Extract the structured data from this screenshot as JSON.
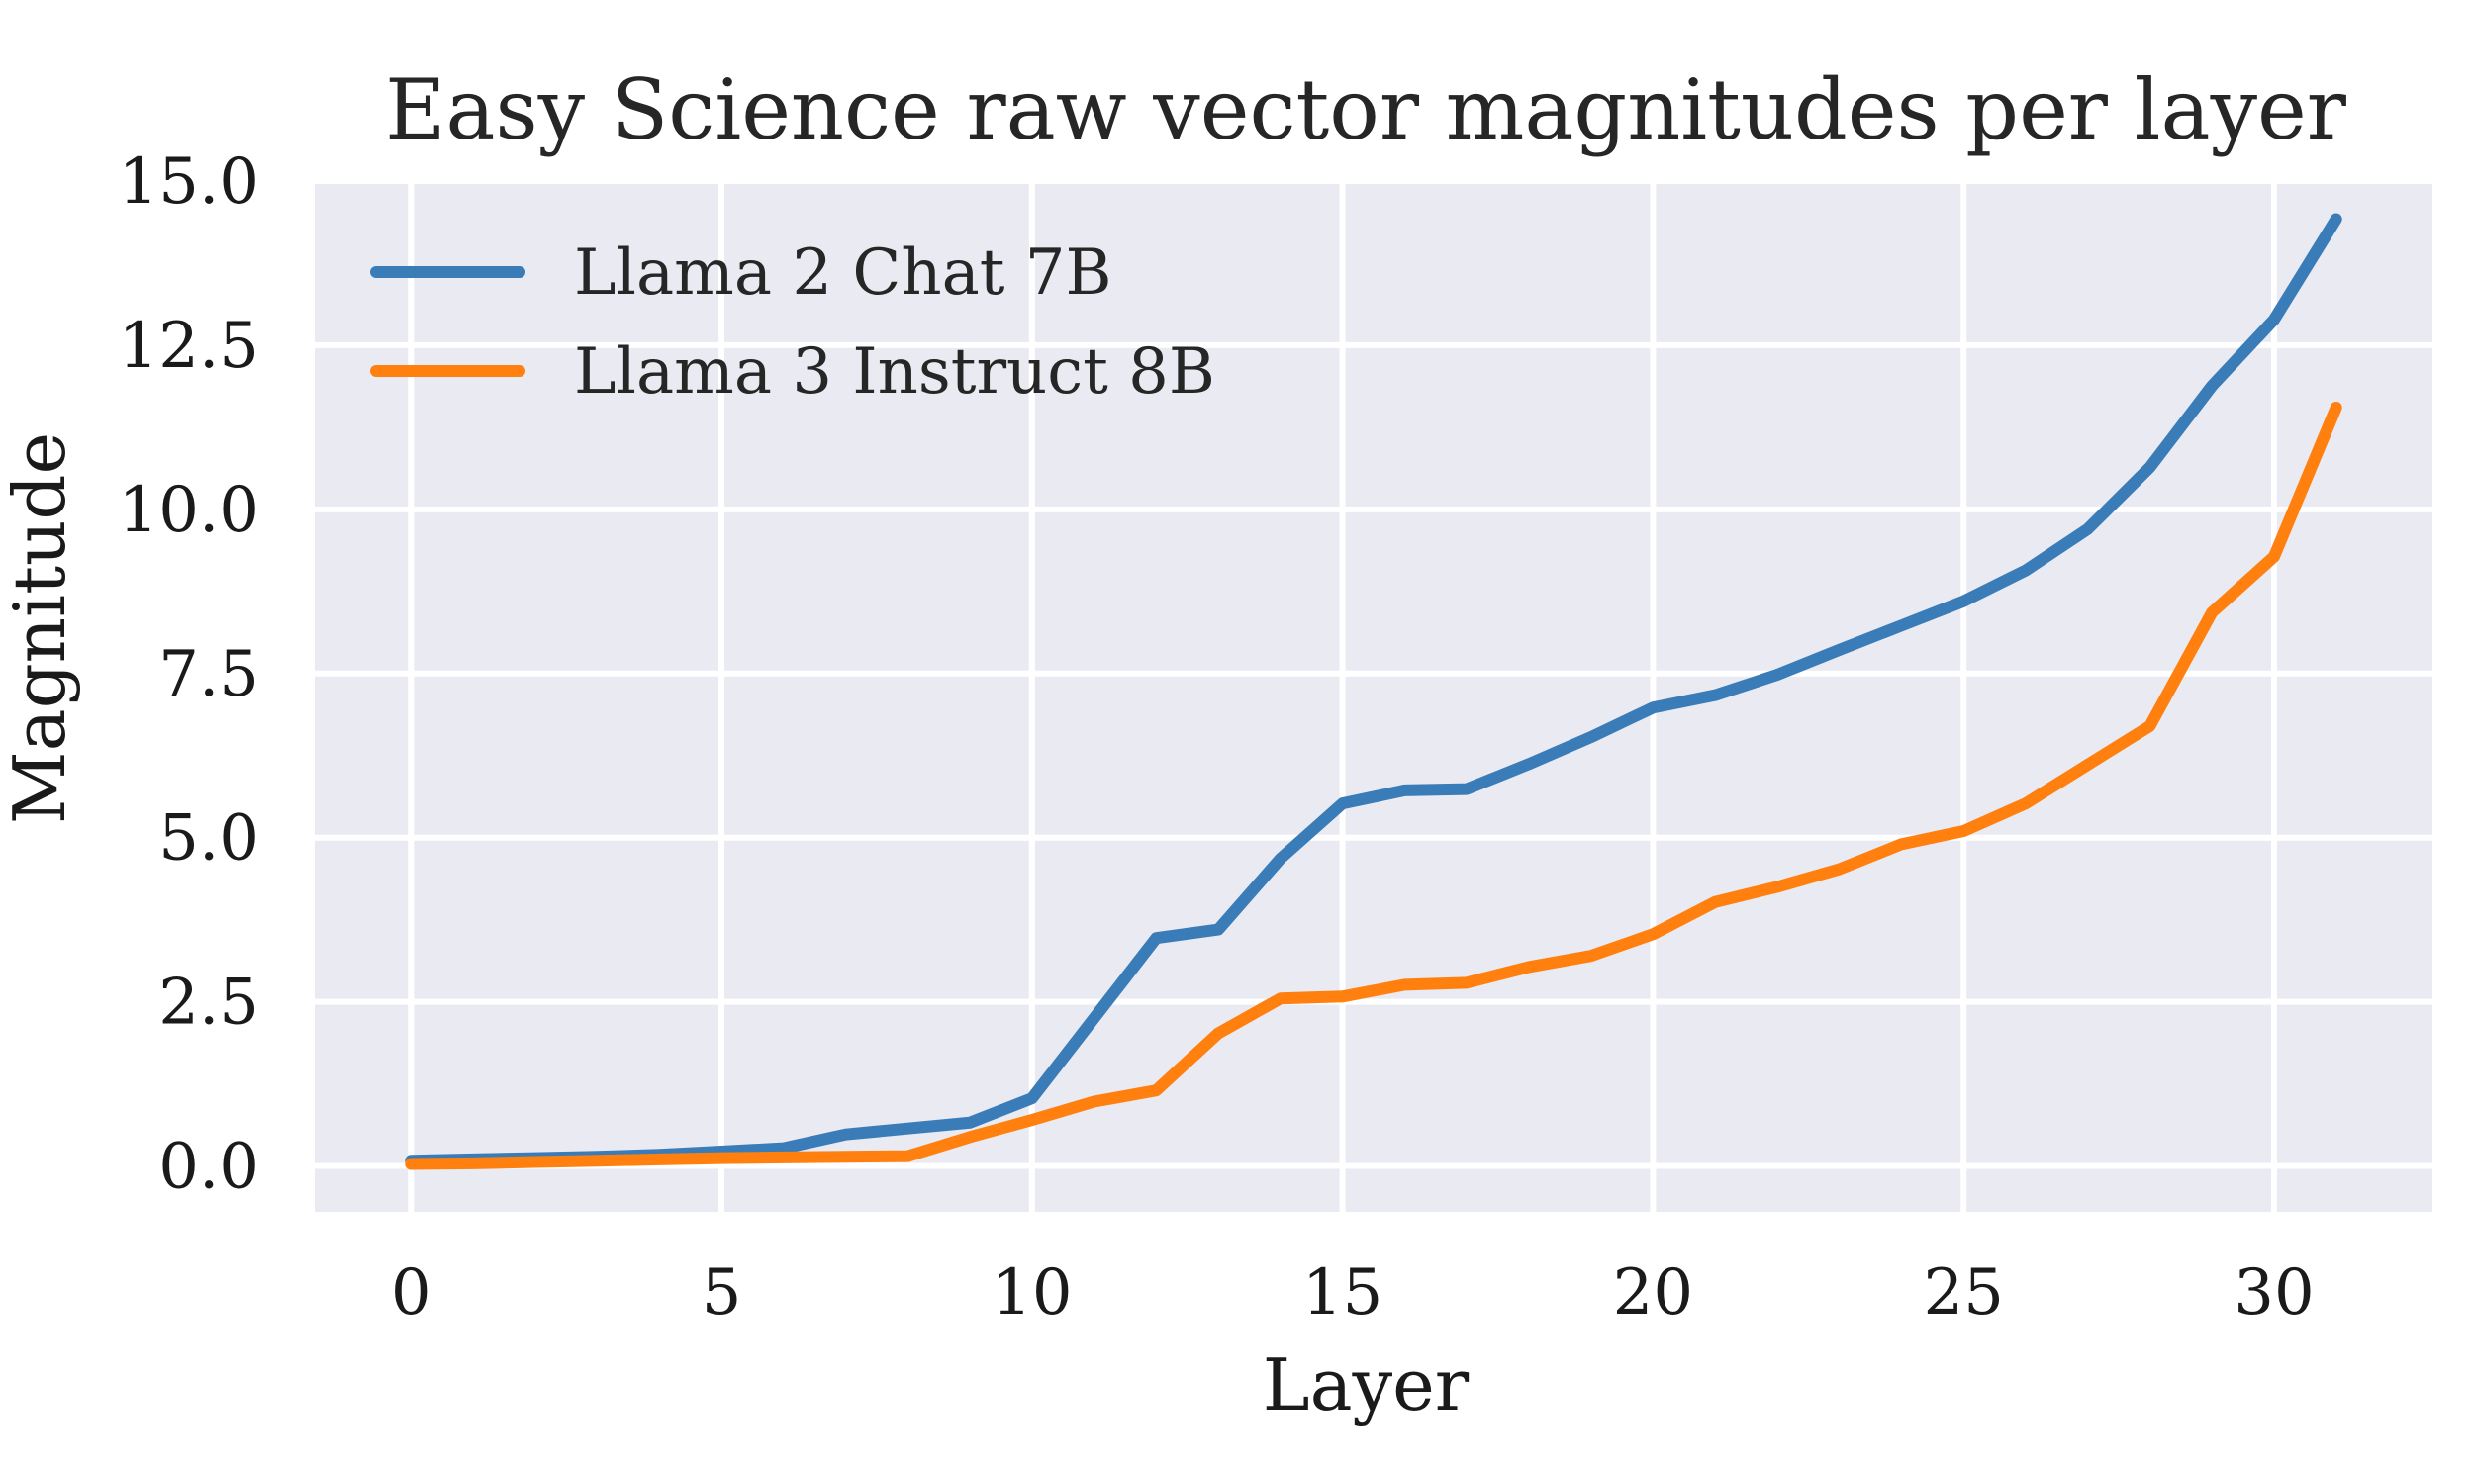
{
  "chart_data": {
    "type": "line",
    "title": "Easy Science raw vector magnitudes per layer",
    "xlabel": "Layer",
    "ylabel": "Magnitude",
    "x": [
      0,
      1,
      2,
      3,
      4,
      5,
      6,
      7,
      8,
      9,
      10,
      11,
      12,
      13,
      14,
      15,
      16,
      17,
      18,
      19,
      20,
      21,
      22,
      23,
      24,
      25,
      26,
      27,
      28,
      29,
      30,
      31
    ],
    "xlim": [
      -1.55,
      32.55
    ],
    "ylim": [
      -0.7,
      15.0
    ],
    "xticks": [
      0,
      5,
      10,
      15,
      20,
      25,
      30
    ],
    "xtick_labels": [
      "0",
      "5",
      "10",
      "15",
      "20",
      "25",
      "30"
    ],
    "yticks": [
      0.0,
      2.5,
      5.0,
      7.5,
      10.0,
      12.5,
      15.0
    ],
    "ytick_labels": [
      "0.0",
      "2.5",
      "5.0",
      "7.5",
      "10.0",
      "12.5",
      "15.0"
    ],
    "grid": true,
    "legend_position": "top-left",
    "series": [
      {
        "name": "Llama 2 Chat 7B",
        "color": "#3a7cb8",
        "values": [
          0.08,
          0.1,
          0.12,
          0.14,
          0.17,
          0.22,
          0.27,
          0.48,
          0.57,
          0.66,
          1.03,
          2.25,
          3.47,
          3.6,
          4.68,
          5.52,
          5.72,
          5.74,
          6.12,
          6.53,
          6.98,
          7.17,
          7.48,
          7.86,
          8.23,
          8.6,
          9.07,
          9.7,
          10.64,
          11.88,
          12.89,
          14.42
        ]
      },
      {
        "name": "Llama 3 Instruct 8B",
        "color": "#ff800e",
        "values": [
          0.03,
          0.04,
          0.06,
          0.08,
          0.1,
          0.12,
          0.13,
          0.14,
          0.15,
          0.44,
          0.7,
          0.98,
          1.15,
          2.02,
          2.55,
          2.58,
          2.76,
          2.79,
          3.03,
          3.2,
          3.53,
          4.02,
          4.25,
          4.52,
          4.9,
          5.1,
          5.52,
          6.11,
          6.7,
          8.43,
          9.28,
          11.55
        ]
      }
    ]
  }
}
